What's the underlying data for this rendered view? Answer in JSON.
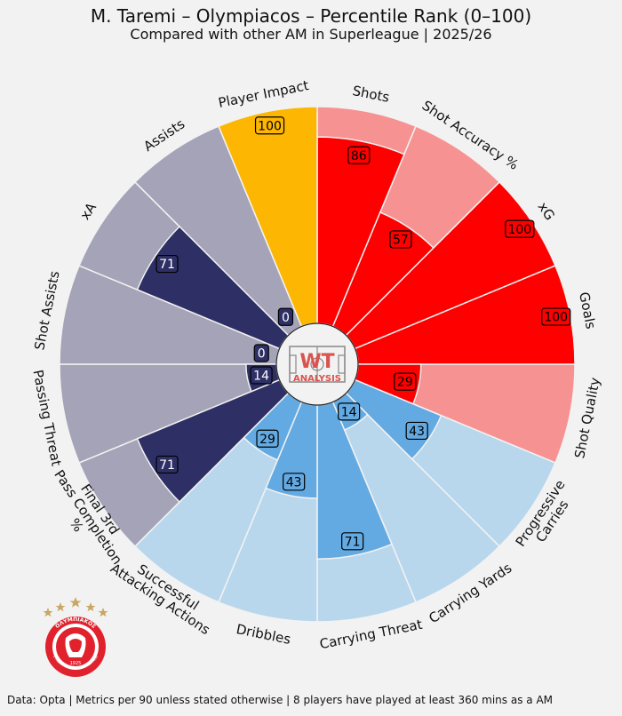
{
  "title": "M. Taremi – Olympiacos – Percentile Rank (0–100)",
  "subtitle": "Compared with other AM in Superleague | 2025/26",
  "footer": "Data: Opta | Metrics per 90 unless stated otherwise | 8 players have played at least 360 mins as a AM",
  "logo": {
    "main": "WT",
    "sub": "ANALYSIS"
  },
  "crest": {
    "top_text": "ΟΛΥΜΠΙΑΚΟΣ",
    "bottom_text": "ΣΥΝΔΕΣΜΟΣ ΦΙΛΑΘΛΩΝ ΠΕΙΡΑΙΩΣ",
    "year": "1925",
    "stars": 5
  },
  "colors": {
    "attack_bar": "#ff0000",
    "attack_bg": "#f79292",
    "carry_bar": "#63aae2",
    "carry_bg": "#b8d7ed",
    "pass_bar": "#2e3065",
    "pass_bg": "#a4a3b7",
    "impact": "#fdb703",
    "background": "#f2f2f2"
  },
  "chart_data": {
    "type": "radar",
    "min": 0,
    "max": 100,
    "categories": [
      "Shots",
      "Shot Accuracy %",
      "xG",
      "Goals",
      "Shot Quality",
      "Progressive\nCarries",
      "Carrying Yards",
      "Carrying Threat",
      "Dribbles",
      "Successful\nAttacking Actions",
      "Final 3rd\nPass Completion\n%",
      "Passing Threat",
      "Shot Assists",
      "xA",
      "Assists",
      "Player Impact"
    ],
    "values": [
      86,
      57,
      100,
      100,
      29,
      43,
      14,
      71,
      43,
      29,
      71,
      14,
      0,
      71,
      0,
      100
    ],
    "groups": [
      "attack",
      "attack",
      "attack",
      "attack",
      "attack",
      "carry",
      "carry",
      "carry",
      "carry",
      "carry",
      "pass",
      "pass",
      "pass",
      "pass",
      "pass",
      "impact"
    ]
  }
}
